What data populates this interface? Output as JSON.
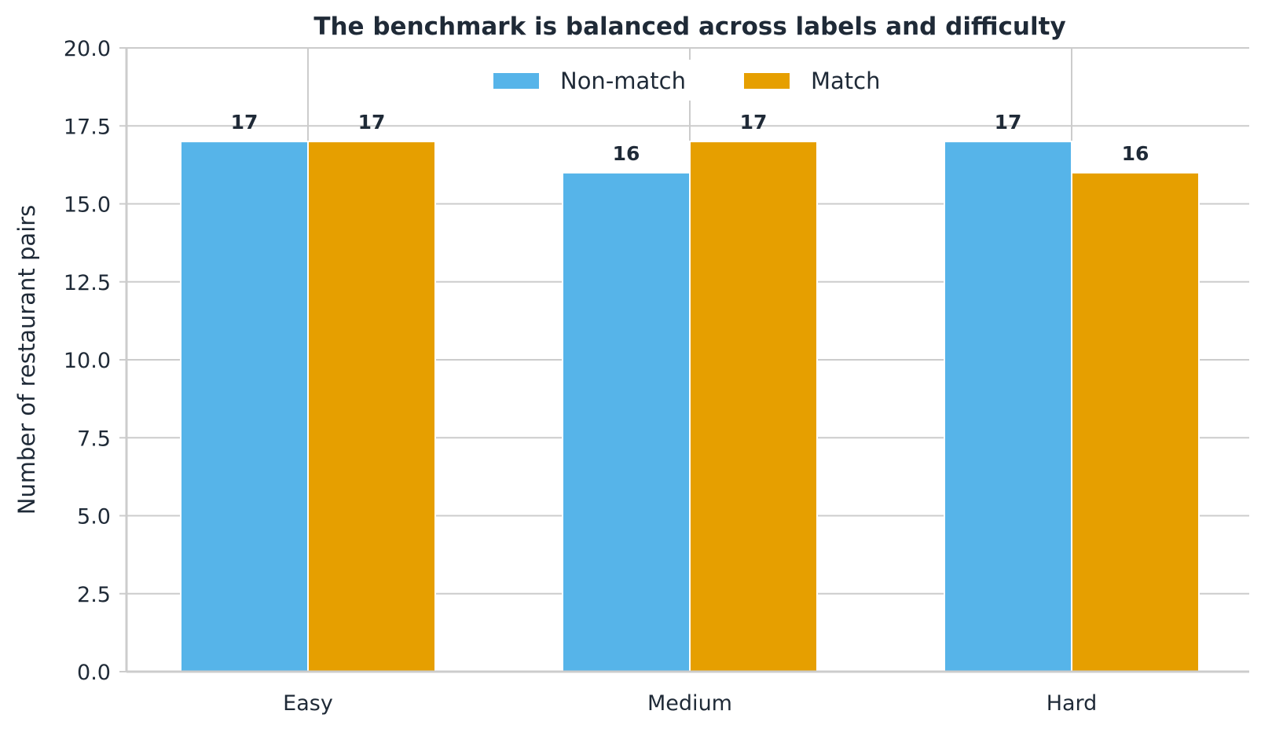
{
  "chart_data": {
    "type": "bar",
    "title": "The benchmark is balanced across labels and difficulty",
    "xlabel": "",
    "ylabel": "Number of restaurant pairs",
    "categories": [
      "Easy",
      "Medium",
      "Hard"
    ],
    "series": [
      {
        "name": "Non-match",
        "color": "#56b4e9",
        "values": [
          17,
          16,
          17
        ]
      },
      {
        "name": "Match",
        "color": "#e69f00",
        "values": [
          17,
          17,
          16
        ]
      }
    ],
    "ylim": [
      0,
      20
    ],
    "yticks": [
      "0.0",
      "2.5",
      "5.0",
      "7.5",
      "10.0",
      "12.5",
      "15.0",
      "17.5",
      "20.0"
    ],
    "grid": true,
    "legend_position": "top-center"
  }
}
